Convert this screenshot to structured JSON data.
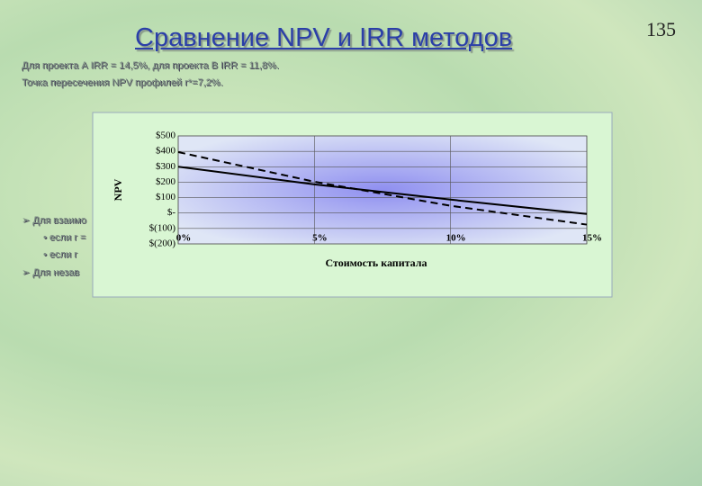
{
  "slide": {
    "title": "Сравнение NPV и IRR методов",
    "page_number": "135",
    "lines": [
      "Для проекта А IRR = 14,5%, для проекта В IRR = 11,8%.",
      "Точка пересечения NPV профилей r*=7,2%."
    ],
    "bullets": [
      "Для взаимо",
      "если r =",
      "если r",
      "Для незав"
    ]
  },
  "chart_data": {
    "type": "line",
    "x_label": "Стоимость капитала",
    "y_label": "NPV",
    "x": [
      0,
      5,
      10,
      15
    ],
    "series": [
      {
        "color": "#000000",
        "dashed": false,
        "values": [
          300,
          186,
          87,
          -6
        ]
      },
      {
        "color": "#000000",
        "dashed": true,
        "values": [
          395,
          203,
          47,
          -75
        ]
      }
    ],
    "xlim": [
      0,
      15
    ],
    "xticks": [
      {
        "value": 0,
        "label": "0%"
      },
      {
        "value": 5,
        "label": "5%"
      },
      {
        "value": 10,
        "label": "10%"
      },
      {
        "value": 15,
        "label": "15%"
      }
    ],
    "ylim": [
      -200,
      500
    ],
    "yticks": [
      {
        "value": -200,
        "label": "$(200)"
      },
      {
        "value": -100,
        "label": "$(100)"
      },
      {
        "value": 0,
        "label": "$-"
      },
      {
        "value": 100,
        "label": "$100"
      },
      {
        "value": 200,
        "label": "$200"
      },
      {
        "value": 300,
        "label": "$300"
      },
      {
        "value": 400,
        "label": "$400"
      },
      {
        "value": 500,
        "label": "$500"
      }
    ],
    "grid": true
  }
}
